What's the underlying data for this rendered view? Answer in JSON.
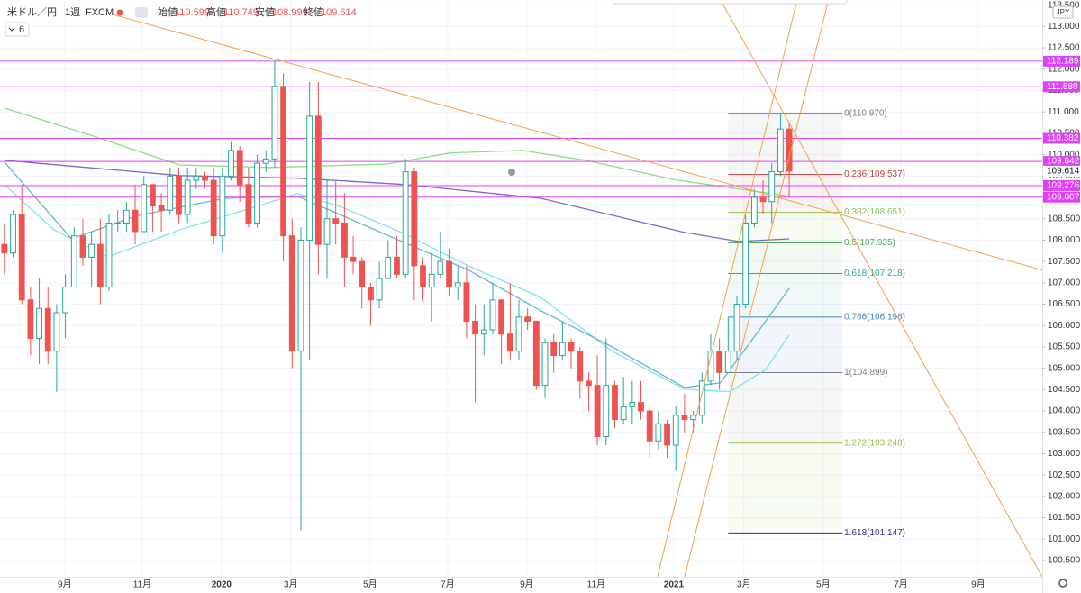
{
  "chart_data": {
    "type": "candlestick",
    "title": "米ドル／円",
    "interval": "1週",
    "source": "FXCM",
    "ohlc_labels": [
      "始値",
      "高値",
      "安値",
      "終値"
    ],
    "indicator_value": 6,
    "currency": "JPY",
    "up_color": "#26a69a",
    "down_color": "#ef5350",
    "grid": true,
    "categories": [
      null,
      null,
      null,
      null,
      null,
      null,
      null,
      null,
      null,
      null,
      null,
      null,
      null,
      null,
      null,
      null,
      null,
      null,
      null,
      null,
      null,
      null,
      null,
      null,
      null,
      null,
      null,
      null,
      null,
      null,
      null,
      null,
      null,
      null,
      null,
      null,
      null,
      null,
      null,
      null,
      null,
      null,
      null,
      null,
      null,
      null,
      null,
      null,
      null,
      null,
      null,
      null,
      null,
      null,
      null,
      null,
      null,
      null,
      null,
      null,
      null,
      null,
      null,
      null,
      null,
      null,
      null,
      null,
      null,
      null,
      null,
      null,
      null,
      null,
      null,
      null,
      null,
      null,
      null,
      null,
      null,
      null,
      null,
      null,
      null,
      null,
      null,
      null,
      null,
      null,
      null
    ],
    "open": [
      107.9,
      107.7,
      108.6,
      106.6,
      105.7,
      106.4,
      105.4,
      106.3,
      106.9,
      108.1,
      107.6,
      107.9,
      106.9,
      108.4,
      108.4,
      108.7,
      108.2,
      109.3,
      108.8,
      108.7,
      109.5,
      108.6,
      109.4,
      109.5,
      109.4,
      108.1,
      109.5,
      110.1,
      109.3,
      108.4,
      109.8,
      109.9,
      111.6,
      108.1,
      105.4,
      108.0,
      110.9,
      107.9,
      108.5,
      108.4,
      107.6,
      107.5,
      106.9,
      106.6,
      107.1,
      107.6,
      107.2,
      109.6,
      107.4,
      106.9,
      107.2,
      107.5,
      106.9,
      107.0,
      106.1,
      105.8,
      105.9,
      106.6,
      105.8,
      105.4,
      106.2,
      106.1,
      104.6,
      105.6,
      105.3,
      105.6,
      105.4,
      104.7,
      104.6,
      103.4,
      104.6,
      103.8,
      104.1,
      104.2,
      104.0,
      103.3,
      103.7,
      103.2,
      103.9,
      103.8,
      103.9,
      104.7,
      105.4,
      104.9,
      105.4,
      106.5,
      108.4,
      109.0,
      108.9,
      109.6,
      110.599
    ],
    "high": [
      108.4,
      108.7,
      109.3,
      106.9,
      107.1,
      106.9,
      106.5,
      107.2,
      108.3,
      108.5,
      108.2,
      108.5,
      108.6,
      108.7,
      108.9,
      109.3,
      109.5,
      109.3,
      109.1,
      109.7,
      109.7,
      109.7,
      109.7,
      109.6,
      109.7,
      109.7,
      110.3,
      110.2,
      109.7,
      110.0,
      110.1,
      112.2,
      111.9,
      108.5,
      108.3,
      111.7,
      111.7,
      109.4,
      109.4,
      109.1,
      108.1,
      107.6,
      107.0,
      107.5,
      108.0,
      108.1,
      109.9,
      109.7,
      107.6,
      107.7,
      108.2,
      107.8,
      107.4,
      107.4,
      106.5,
      106.5,
      107.0,
      106.6,
      107.0,
      106.6,
      106.4,
      106.1,
      105.7,
      105.8,
      106.1,
      105.7,
      105.5,
      104.9,
      105.3,
      105.7,
      104.7,
      104.8,
      104.7,
      104.7,
      104.1,
      104.0,
      103.8,
      104.1,
      104.4,
      104.0,
      104.9,
      105.8,
      105.7,
      106.2,
      106.7,
      108.6,
      109.2,
      109.4,
      109.8,
      110.97,
      110.749
    ],
    "low": [
      107.2,
      107.6,
      106.5,
      105.3,
      105.1,
      105.1,
      104.45,
      105.7,
      106.9,
      107.4,
      106.9,
      106.5,
      106.8,
      108.2,
      108.2,
      107.9,
      108.2,
      108.2,
      108.2,
      108.6,
      108.4,
      108.4,
      109.2,
      109.2,
      107.9,
      107.7,
      109.4,
      108.9,
      108.3,
      108.3,
      109.6,
      109.7,
      107.5,
      105.0,
      101.2,
      105.2,
      107.2,
      107.1,
      107.9,
      106.9,
      107.2,
      106.4,
      106.0,
      106.4,
      107.1,
      107.1,
      107.1,
      106.6,
      106.6,
      106.1,
      107.1,
      106.7,
      106.6,
      105.7,
      104.2,
      105.3,
      105.8,
      105.1,
      105.2,
      105.2,
      105.9,
      104.5,
      104.3,
      104.9,
      105.2,
      105.0,
      104.3,
      104.0,
      103.2,
      103.2,
      103.6,
      103.7,
      103.7,
      103.8,
      102.9,
      103.1,
      102.9,
      102.6,
      103.5,
      103.5,
      103.7,
      104.6,
      104.5,
      104.9,
      105.2,
      106.4,
      108.3,
      108.6,
      108.4,
      109.5,
      108.999
    ],
    "close": [
      107.7,
      108.6,
      106.6,
      105.7,
      106.4,
      105.4,
      106.3,
      106.9,
      108.1,
      107.6,
      107.9,
      106.9,
      108.4,
      108.4,
      108.7,
      108.2,
      109.3,
      108.8,
      108.7,
      109.5,
      108.6,
      109.4,
      109.5,
      109.4,
      108.1,
      109.5,
      110.1,
      109.3,
      108.4,
      109.8,
      109.9,
      111.6,
      108.1,
      105.4,
      108.0,
      110.9,
      107.9,
      108.5,
      108.4,
      107.6,
      107.5,
      106.9,
      106.6,
      107.1,
      107.6,
      107.2,
      109.6,
      107.4,
      106.9,
      107.2,
      107.5,
      106.9,
      107.0,
      106.1,
      105.8,
      105.9,
      106.6,
      105.8,
      105.4,
      106.2,
      106.1,
      104.6,
      105.6,
      105.3,
      105.6,
      105.4,
      104.7,
      104.6,
      103.4,
      104.6,
      103.8,
      104.1,
      104.2,
      104.0,
      103.3,
      103.7,
      103.2,
      103.9,
      103.8,
      103.9,
      104.7,
      105.4,
      104.9,
      105.4,
      106.5,
      108.4,
      109.0,
      108.9,
      109.6,
      110.6,
      109.614
    ],
    "xlim": [
      -0.5,
      119.02
    ],
    "xticks": [
      {
        "value": 6.92,
        "label": "9月"
      },
      {
        "value": 15.81,
        "label": "11月"
      },
      {
        "value": 24.9,
        "label": "2020"
      },
      {
        "value": 32.85,
        "label": "3月"
      },
      {
        "value": 41.94,
        "label": "5月"
      },
      {
        "value": 50.83,
        "label": "7月"
      },
      {
        "value": 59.92,
        "label": "9月"
      },
      {
        "value": 67.87,
        "label": "11月"
      },
      {
        "value": 76.76,
        "label": "2021"
      },
      {
        "value": 84.81,
        "label": "3月"
      },
      {
        "value": 93.9,
        "label": "5月"
      },
      {
        "value": 102.79,
        "label": "7月"
      },
      {
        "value": 111.67,
        "label": "9月"
      }
    ],
    "ylim": [
      100.12,
      113.62
    ],
    "yticks": [
      {
        "value": 100.5,
        "label": "100.500"
      },
      {
        "value": 101,
        "label": "101.000"
      },
      {
        "value": 101.5,
        "label": "101.500"
      },
      {
        "value": 102,
        "label": "102.000"
      },
      {
        "value": 102.5,
        "label": "102.500"
      },
      {
        "value": 103,
        "label": "103.000"
      },
      {
        "value": 103.5,
        "label": "103.500"
      },
      {
        "value": 104,
        "label": "104.000"
      },
      {
        "value": 104.5,
        "label": "104.500"
      },
      {
        "value": 105,
        "label": "105.000"
      },
      {
        "value": 105.5,
        "label": "105.500"
      },
      {
        "value": 106,
        "label": "106.000"
      },
      {
        "value": 106.5,
        "label": "106.500"
      },
      {
        "value": 107,
        "label": "107.000"
      },
      {
        "value": 107.5,
        "label": "107.500"
      },
      {
        "value": 108,
        "label": "108.000"
      },
      {
        "value": 108.5,
        "label": "108.500"
      },
      {
        "value": 109,
        "label": "109.000"
      },
      {
        "value": 109.5,
        "label": "109.500"
      },
      {
        "value": 110,
        "label": "110.000"
      },
      {
        "value": 110.5,
        "label": "110.500"
      },
      {
        "value": 111,
        "label": "111.000"
      },
      {
        "value": 111.5,
        "label": "111.500"
      },
      {
        "value": 112,
        "label": "112.000"
      },
      {
        "value": 112.5,
        "label": "112.500"
      },
      {
        "value": 113,
        "label": "113.000"
      },
      {
        "value": 113.5,
        "label": "113.500"
      }
    ],
    "horizontal_lines": {
      "color": "#e040fb",
      "values": [
        112.189,
        111.589,
        110.382,
        109.842,
        109.276,
        109.007
      ]
    },
    "moving_averages": [
      {
        "color": "#86e07f",
        "x": [
          0,
          9.8,
          20.1,
          30.5,
          43.9,
          51.1,
          59.4,
          66.6,
          77,
          90
        ],
        "values": [
          111.09,
          110.46,
          109.76,
          109.7,
          109.78,
          110.04,
          110.1,
          109.87,
          109.41,
          109.03
        ]
      },
      {
        "color": "#7b68c8",
        "x": [
          0,
          20.1,
          33.6,
          46,
          61.5,
          78,
          84.2,
          90
        ],
        "values": [
          109.87,
          109.51,
          109.45,
          109.3,
          108.98,
          108.18,
          107.97,
          108.03
        ]
      },
      {
        "color": "#7fe3f0",
        "x": [
          0,
          5.7,
          11.9,
          20.1,
          25.3,
          33.6,
          38.7,
          46,
          53.2,
          61.5,
          69.7,
          78,
          83.2,
          87.3,
          90
        ],
        "values": [
          109.3,
          108.24,
          107.61,
          108.24,
          108.56,
          109.09,
          108.77,
          108.14,
          107.4,
          106.66,
          105.4,
          104.51,
          104.45,
          104.97,
          105.78
        ]
      },
      {
        "color": "#5fb8c8",
        "x": [
          0,
          7.7,
          15,
          25.3,
          33.6,
          46,
          53.2,
          61.5,
          69.7,
          78,
          82.1,
          86.3,
          90
        ],
        "values": [
          109.83,
          108.03,
          108.56,
          108.98,
          109.03,
          107.93,
          107.3,
          106.35,
          105.5,
          104.55,
          104.66,
          105.82,
          106.87
        ]
      }
    ],
    "trend_lines": {
      "color": "#f5a04a",
      "lines": [
        {
          "x": [
            11.88,
            119.02
          ],
          "y": [
            113.31,
            107.3
          ]
        },
        {
          "x": [
            82.13,
            119.02
          ],
          "y": [
            113.62,
            100.12
          ]
        },
        {
          "x": [
            74.9,
            90.9
          ],
          "y": [
            100.12,
            113.62
          ]
        },
        {
          "x": [
            78,
            94.5
          ],
          "y": [
            100.12,
            113.62
          ]
        }
      ]
    },
    "fibonacci": {
      "x": [
        83,
        96.1
      ],
      "levels": [
        {
          "value": 110.97,
          "label": "0(110.970)",
          "color": "#787b86"
        },
        {
          "value": 109.537,
          "label": "0.236(109.537)",
          "color": "#b2443c"
        },
        {
          "value": 108.651,
          "label": "0.382(108.651)",
          "color": "#8bc34a"
        },
        {
          "value": 107.935,
          "label": "0.5(107.935)",
          "color": "#4caf50"
        },
        {
          "value": 107.218,
          "label": "0.618(107.218)",
          "color": "#26a69a"
        },
        {
          "value": 106.198,
          "label": "0.786(106.198)",
          "color": "#3d85c6"
        },
        {
          "value": 104.899,
          "label": "1(104.899)",
          "color": "#787b86"
        },
        {
          "value": 103.248,
          "label": "1.272(103.248)",
          "color": "#8bc34a"
        },
        {
          "value": 101.147,
          "label": "1.618(101.147)",
          "color": "#2d2f8c"
        }
      ]
    }
  }
}
